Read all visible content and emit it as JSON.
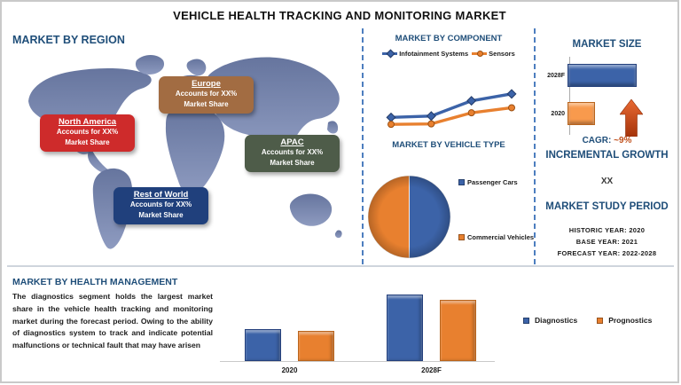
{
  "title": "VEHICLE HEALTH TRACKING AND MONITORING MARKET",
  "region_section": {
    "heading": "MARKET BY REGION",
    "regions": [
      {
        "name": "North America",
        "line1": "Accounts for XX%",
        "line2": "Market Share",
        "color": "#ce2b2b"
      },
      {
        "name": "Europe",
        "line1": "Accounts for XX%",
        "line2": "Market Share",
        "color": "#a26c42"
      },
      {
        "name": "APAC",
        "line1": "Accounts for XX%",
        "line2": "Market Share",
        "color": "#4e5c49"
      },
      {
        "name": "Rest of World",
        "line1": "Accounts for XX%",
        "line2": "Market Share",
        "color": "#20407c"
      }
    ]
  },
  "component_section": {
    "heading": "MARKET BY COMPONENT"
  },
  "vehicle_section": {
    "heading": "MARKET BY VEHICLE TYPE"
  },
  "size_section": {
    "heading": "MARKET SIZE",
    "cagr_label": "CAGR:",
    "cagr_value": "~9%",
    "incremental_heading": "INCREMENTAL GROWTH",
    "incremental_value": "XX",
    "study_heading": "MARKET STUDY PERIOD",
    "study_lines": [
      "HISTORIC YEAR: 2020",
      "BASE YEAR: 2021",
      "FORECAST YEAR: 2022-2028"
    ]
  },
  "health_section": {
    "heading": "MARKET BY HEALTH MANAGEMENT",
    "paragraph": "The diagnostics segment holds the largest market share in the vehicle health tracking and monitoring market during the forecast period. Owing to the ability of diagnostics system to track and indicate potential malfunctions or technical fault that may have arisen"
  },
  "chart_data": [
    {
      "name": "component-trend",
      "type": "line",
      "title": "MARKET BY COMPONENT",
      "x": [
        1,
        2,
        3,
        4
      ],
      "series": [
        {
          "name": "Infotainment Systems",
          "marker": "diamond",
          "color": "#3c63a8",
          "values": [
            32,
            35,
            68,
            83
          ]
        },
        {
          "name": "Sensors",
          "marker": "circle",
          "color": "#e8802f",
          "values": [
            17,
            18,
            42,
            53
          ]
        }
      ],
      "ylim": [
        0,
        100
      ],
      "legend_position": "top"
    },
    {
      "name": "vehicle-type-pie",
      "type": "pie",
      "title": "MARKET BY VEHICLE TYPE",
      "slices": [
        {
          "label": "Passenger Cars",
          "value": 50,
          "color": "#3c63a8"
        },
        {
          "label": "Commercial Vehicles",
          "value": 50,
          "color": "#e8802f"
        }
      ],
      "legend_position": "right"
    },
    {
      "name": "market-size-bars",
      "type": "bar",
      "orientation": "horizontal",
      "title": "MARKET SIZE",
      "categories": [
        "2028F",
        "2020"
      ],
      "values": [
        100,
        40
      ],
      "colors": [
        "#3c63a8",
        "#f89a4d"
      ],
      "cagr": "~9%"
    },
    {
      "name": "health-management-bars",
      "type": "bar",
      "orientation": "vertical",
      "title": "MARKET BY HEALTH MANAGEMENT",
      "categories": [
        "2020",
        "2028F"
      ],
      "series": [
        {
          "name": "Diagnostics",
          "color": "#3c63a8",
          "values": [
            36,
            75
          ]
        },
        {
          "name": "Prognostics",
          "color": "#e8802f",
          "values": [
            34,
            69
          ]
        }
      ],
      "legend_position": "right"
    }
  ]
}
